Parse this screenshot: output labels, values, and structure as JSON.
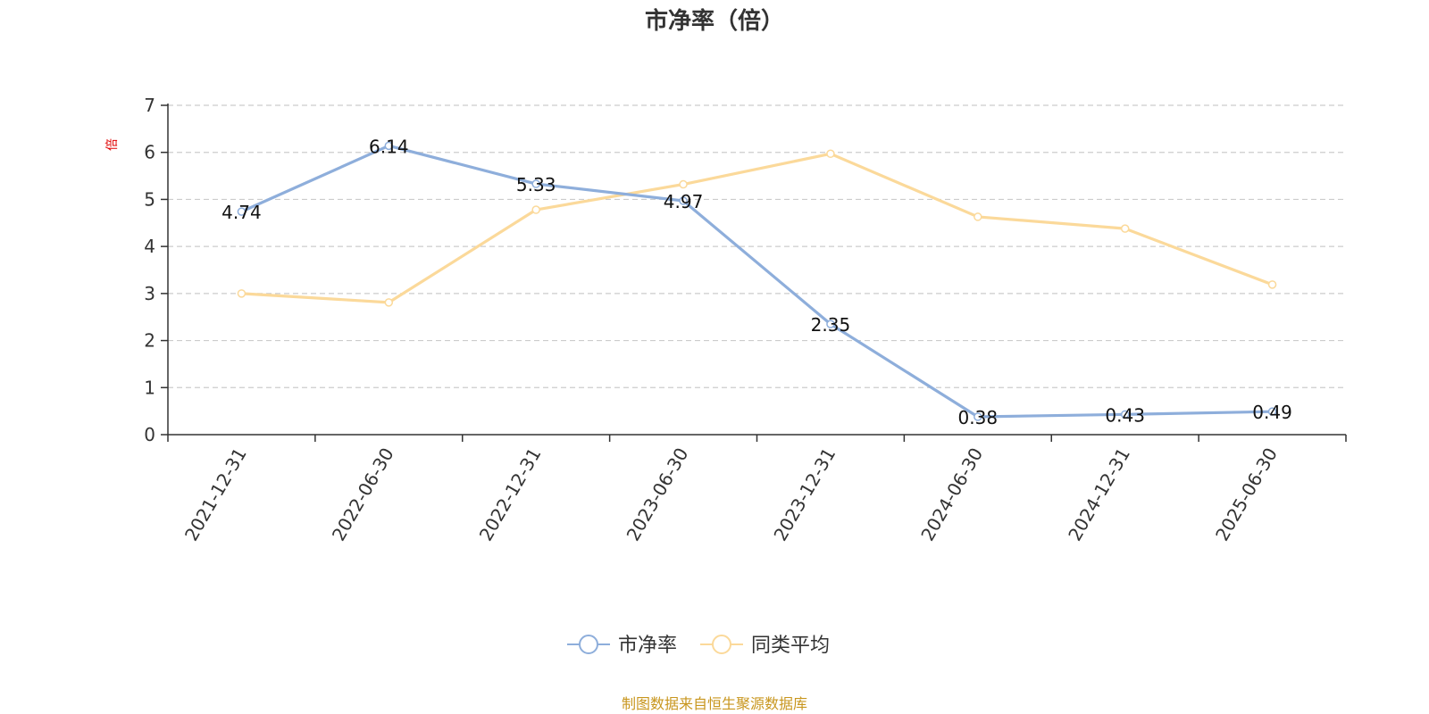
{
  "chart_data": {
    "type": "line",
    "title": "市净率（倍）",
    "ylabel": "倍",
    "xlabel": "",
    "ylim": [
      0,
      7
    ],
    "yticks": [
      0,
      1,
      2,
      3,
      4,
      5,
      6,
      7
    ],
    "grid": "horizontal-dashed",
    "legend_position": "bottom",
    "categories": [
      "2021-12-31",
      "2022-06-30",
      "2022-12-31",
      "2023-06-30",
      "2023-12-31",
      "2024-06-30",
      "2024-12-31",
      "2025-06-30"
    ],
    "series": [
      {
        "name": "市净率",
        "color": "#8eaedb",
        "values": [
          4.74,
          6.14,
          5.33,
          4.97,
          2.35,
          0.38,
          0.43,
          0.49
        ],
        "labels": [
          "4.74",
          "6.14",
          "5.33",
          "4.97",
          "2.35",
          "0.38",
          "0.43",
          "0.49"
        ]
      },
      {
        "name": "同类平均",
        "color": "#fbd99a",
        "values": [
          3.0,
          2.81,
          4.78,
          5.32,
          5.97,
          4.63,
          4.38,
          3.19
        ]
      }
    ],
    "source": "制图数据来自恒生聚源数据库"
  }
}
